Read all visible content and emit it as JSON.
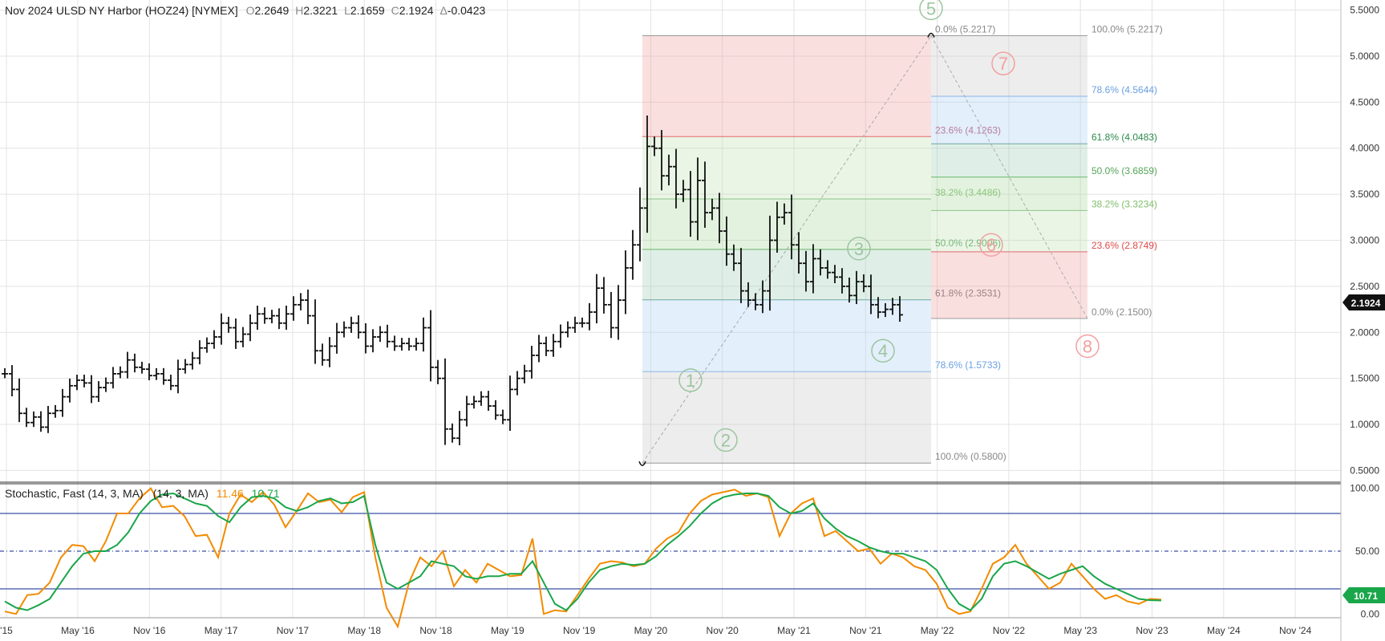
{
  "header": {
    "title": "Nov 2024 ULSD NY Harbor (HOZ24) [NYMEX]",
    "ohlc": [
      {
        "k": "O",
        "v": "2.2649"
      },
      {
        "k": "H",
        "v": "2.3221"
      },
      {
        "k": "L",
        "v": "2.1659"
      },
      {
        "k": "C",
        "v": "2.1924"
      },
      {
        "k": "Δ",
        "v": "-0.0423"
      }
    ]
  },
  "last_price": "2.1924",
  "stoch_header": {
    "title": "Stochastic, Fast (14, 3, MA)",
    "params": "(14, 3, MA)",
    "k_value": "11.46",
    "d_value": "10.71"
  },
  "stoch_last_label": "10.71",
  "colors": {
    "bar": "#111111",
    "k_line": "#f28b00",
    "d_line": "#1aa64a",
    "level_line": "#3a4fa8",
    "price_badge": "#111111",
    "stoch_badge": "#1aa64a"
  },
  "chart_data": [
    {
      "type": "ohlc",
      "bar_interval": "monthly",
      "y_ticks": [
        "5.5000",
        "5.0000",
        "4.5000",
        "4.0000",
        "3.5000",
        "3.0000",
        "2.5000",
        "2.0000",
        "1.5000",
        "1.0000",
        "0.5000"
      ],
      "ylim": [
        0.39,
        5.61
      ],
      "x_ticks": [
        "'15",
        "May '16",
        "Nov '16",
        "May '17",
        "Nov '17",
        "May '18",
        "Nov '18",
        "May '19",
        "Nov '19",
        "May '20",
        "Nov '20",
        "May '21",
        "Nov '21",
        "May '22",
        "Nov '22",
        "May '23",
        "Nov '23",
        "May '24",
        "Nov '24"
      ],
      "close_values": [
        1.55,
        1.38,
        1.12,
        1.02,
        1.08,
        0.97,
        1.12,
        1.15,
        1.3,
        1.42,
        1.48,
        1.45,
        1.3,
        1.4,
        1.45,
        1.55,
        1.57,
        1.7,
        1.62,
        1.6,
        1.53,
        1.55,
        1.48,
        1.42,
        1.6,
        1.65,
        1.72,
        1.83,
        1.88,
        1.95,
        2.1,
        2.05,
        1.9,
        1.98,
        2.1,
        2.2,
        2.15,
        2.18,
        2.1,
        2.2,
        2.3,
        2.35,
        2.18,
        1.8,
        1.7,
        1.85,
        2.0,
        2.05,
        2.1,
        2.0,
        1.85,
        1.95,
        2.0,
        1.9,
        1.85,
        1.88,
        1.85,
        1.88,
        2.05,
        1.62,
        1.5,
        0.95,
        0.85,
        1.05,
        1.22,
        1.25,
        1.3,
        1.2,
        1.1,
        1.05,
        1.38,
        1.5,
        1.58,
        1.75,
        1.88,
        1.8,
        1.9,
        2.0,
        2.05,
        2.1,
        2.1,
        2.22,
        2.48,
        2.3,
        2.05,
        2.35,
        2.7,
        2.95,
        3.35,
        4.02,
        4.0,
        3.7,
        3.8,
        3.5,
        3.55,
        3.2,
        3.65,
        3.3,
        3.35,
        3.1,
        2.85,
        2.75,
        2.45,
        2.35,
        2.3,
        2.45,
        3.0,
        3.25,
        3.3,
        2.95,
        2.75,
        2.55,
        2.8,
        2.7,
        2.65,
        2.6,
        2.5,
        2.4,
        2.55,
        2.5,
        2.3,
        2.22,
        2.25,
        2.3,
        2.19
      ],
      "fib_retracements": [
        {
          "side": "left",
          "labels": [
            "0.0% (5.2217)",
            "23.6% (4.1263)",
            "38.2% (3.4486)",
            "50.0% (2.9006)",
            "61.8% (2.3531)",
            "78.6% (1.5733)",
            "100.0% (0.5800)"
          ],
          "values": [
            5.2217,
            4.1263,
            3.4486,
            2.9006,
            2.3531,
            1.5733,
            0.58
          ]
        },
        {
          "side": "right",
          "labels": [
            "100.0% (5.2217)",
            "78.6% (4.5644)",
            "61.8% (4.0483)",
            "50.0% (3.6859)",
            "38.2% (3.3234)",
            "23.6% (2.8749)",
            "0.0% (2.1500)"
          ],
          "values": [
            5.2217,
            4.5644,
            4.0483,
            3.6859,
            3.3234,
            2.8749,
            2.15
          ]
        }
      ],
      "wave_labels": [
        "1",
        "2",
        "3",
        "4",
        "5",
        "6",
        "7",
        "8"
      ]
    },
    {
      "type": "line",
      "title": "Stochastic, Fast (14, 3, MA)",
      "ylim": [
        -3,
        103
      ],
      "y_ticks": [
        "100.00",
        "50.00",
        "0.00"
      ],
      "levels": [
        80,
        50,
        20
      ],
      "series": [
        {
          "name": "11.46",
          "values": [
            2,
            0,
            15,
            16,
            25,
            45,
            55,
            54,
            42,
            58,
            80,
            80,
            92,
            100,
            85,
            86,
            78,
            62,
            63,
            45,
            80,
            95,
            89,
            97,
            87,
            69,
            82,
            96,
            89,
            91,
            81,
            93,
            97,
            45,
            5,
            -10,
            25,
            45,
            38,
            50,
            22,
            35,
            25,
            40,
            35,
            30,
            31,
            60,
            0,
            3,
            2,
            15,
            28,
            40,
            42,
            41,
            38,
            40,
            52,
            60,
            65,
            80,
            90,
            95,
            97,
            99,
            94,
            96,
            93,
            62,
            80,
            88,
            92,
            62,
            66,
            58,
            50,
            52,
            40,
            48,
            45,
            38,
            35,
            24,
            5,
            0,
            2,
            20,
            40,
            45,
            55,
            40,
            30,
            20,
            25,
            40,
            30,
            20,
            12,
            15,
            10,
            8,
            12,
            11.46
          ]
        },
        {
          "name": "10.71",
          "values": [
            10,
            5,
            3,
            7,
            12,
            25,
            38,
            48,
            50,
            50,
            55,
            65,
            80,
            90,
            95,
            96,
            92,
            88,
            86,
            78,
            73,
            85,
            93,
            94,
            92,
            85,
            82,
            85,
            90,
            92,
            88,
            89,
            94,
            55,
            25,
            20,
            25,
            30,
            42,
            40,
            38,
            30,
            28,
            30,
            30,
            32,
            32,
            42,
            25,
            8,
            3,
            12,
            25,
            35,
            38,
            40,
            39,
            40,
            46,
            55,
            62,
            70,
            80,
            88,
            93,
            95,
            96,
            96,
            94,
            85,
            80,
            82,
            88,
            76,
            68,
            62,
            58,
            53,
            50,
            48,
            48,
            45,
            42,
            35,
            20,
            8,
            3,
            12,
            30,
            40,
            42,
            38,
            33,
            28,
            32,
            35,
            38,
            30,
            24,
            20,
            16,
            12,
            11,
            10.71
          ]
        }
      ]
    }
  ]
}
